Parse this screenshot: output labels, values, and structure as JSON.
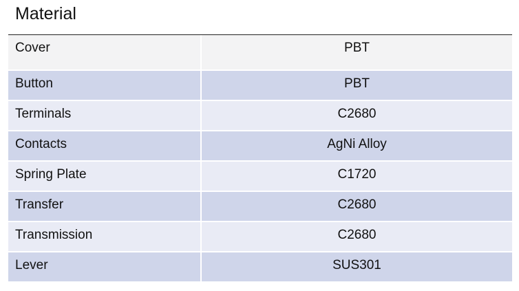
{
  "title": "Material",
  "table": {
    "rows": [
      [
        "Cover",
        "PBT"
      ],
      [
        "Button",
        "PBT"
      ],
      [
        "Terminals",
        "C2680"
      ],
      [
        "Contacts",
        "AgNi Alloy"
      ],
      [
        "Spring Plate",
        "C1720"
      ],
      [
        "Transfer",
        "C2680"
      ],
      [
        "Transmission",
        "C2680"
      ],
      [
        "Lever",
        "SUS301"
      ]
    ]
  }
}
